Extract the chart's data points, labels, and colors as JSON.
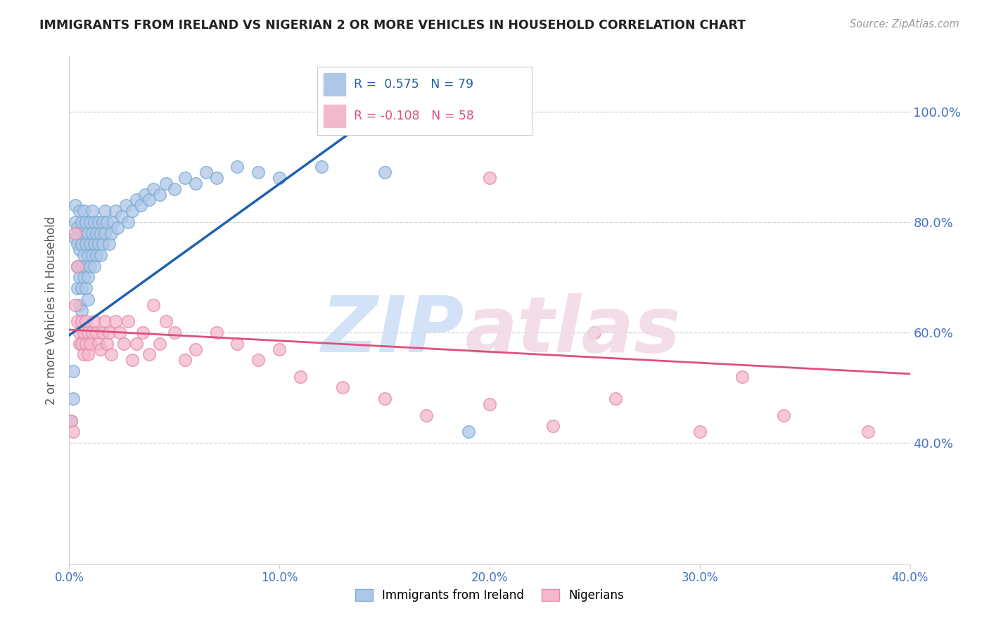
{
  "title": "IMMIGRANTS FROM IRELAND VS NIGERIAN 2 OR MORE VEHICLES IN HOUSEHOLD CORRELATION CHART",
  "source": "Source: ZipAtlas.com",
  "ylabel": "2 or more Vehicles in Household",
  "right_yticklabels": [
    "40.0%",
    "60.0%",
    "80.0%",
    "100.0%"
  ],
  "right_yticks": [
    0.4,
    0.6,
    0.8,
    1.0
  ],
  "xlim": [
    0.0,
    0.4
  ],
  "ylim": [
    0.18,
    1.1
  ],
  "xticks": [
    0.0,
    0.1,
    0.2,
    0.3,
    0.4
  ],
  "legend_ireland": "Immigrants from Ireland",
  "legend_nigerian": "Nigerians",
  "R_ireland": 0.575,
  "N_ireland": 79,
  "R_nigerian": -0.108,
  "N_nigerian": 58,
  "ireland_color": "#aec6e8",
  "ireland_edge_color": "#7aadd4",
  "ireland_line_color": "#2060b0",
  "nigerian_color": "#f4b8cc",
  "nigerian_edge_color": "#e88aaa",
  "nigerian_line_color": "#e0507a",
  "watermark_zip_color": "#ccddf5",
  "watermark_atlas_color": "#f0d8e4",
  "grid_color": "#d0d0d0",
  "background_color": "#ffffff",
  "title_color": "#222222",
  "right_label_color": "#4472c4",
  "bottom_label_color": "#4472c4",
  "ireland_x": [
    0.001,
    0.002,
    0.002,
    0.003,
    0.003,
    0.003,
    0.004,
    0.004,
    0.004,
    0.004,
    0.005,
    0.005,
    0.005,
    0.005,
    0.005,
    0.006,
    0.006,
    0.006,
    0.006,
    0.006,
    0.007,
    0.007,
    0.007,
    0.007,
    0.008,
    0.008,
    0.008,
    0.008,
    0.009,
    0.009,
    0.009,
    0.009,
    0.01,
    0.01,
    0.01,
    0.011,
    0.011,
    0.011,
    0.012,
    0.012,
    0.012,
    0.013,
    0.013,
    0.014,
    0.014,
    0.015,
    0.015,
    0.016,
    0.016,
    0.017,
    0.017,
    0.018,
    0.019,
    0.02,
    0.021,
    0.022,
    0.023,
    0.025,
    0.027,
    0.028,
    0.03,
    0.032,
    0.034,
    0.036,
    0.038,
    0.04,
    0.043,
    0.046,
    0.05,
    0.055,
    0.06,
    0.065,
    0.07,
    0.08,
    0.09,
    0.1,
    0.12,
    0.15,
    0.19
  ],
  "ireland_y": [
    0.44,
    0.53,
    0.48,
    0.8,
    0.77,
    0.83,
    0.76,
    0.79,
    0.72,
    0.68,
    0.78,
    0.82,
    0.75,
    0.7,
    0.65,
    0.8,
    0.76,
    0.72,
    0.68,
    0.64,
    0.82,
    0.78,
    0.74,
    0.7,
    0.8,
    0.76,
    0.72,
    0.68,
    0.78,
    0.74,
    0.7,
    0.66,
    0.8,
    0.76,
    0.72,
    0.82,
    0.78,
    0.74,
    0.8,
    0.76,
    0.72,
    0.78,
    0.74,
    0.8,
    0.76,
    0.78,
    0.74,
    0.8,
    0.76,
    0.82,
    0.78,
    0.8,
    0.76,
    0.78,
    0.8,
    0.82,
    0.79,
    0.81,
    0.83,
    0.8,
    0.82,
    0.84,
    0.83,
    0.85,
    0.84,
    0.86,
    0.85,
    0.87,
    0.86,
    0.88,
    0.87,
    0.89,
    0.88,
    0.9,
    0.89,
    0.88,
    0.9,
    0.89,
    0.42
  ],
  "nigerian_x": [
    0.001,
    0.002,
    0.003,
    0.003,
    0.004,
    0.004,
    0.005,
    0.005,
    0.006,
    0.006,
    0.007,
    0.007,
    0.008,
    0.008,
    0.009,
    0.009,
    0.01,
    0.011,
    0.012,
    0.013,
    0.014,
    0.015,
    0.016,
    0.017,
    0.018,
    0.019,
    0.02,
    0.022,
    0.024,
    0.026,
    0.028,
    0.03,
    0.032,
    0.035,
    0.038,
    0.04,
    0.043,
    0.046,
    0.05,
    0.055,
    0.06,
    0.07,
    0.08,
    0.09,
    0.1,
    0.11,
    0.13,
    0.15,
    0.17,
    0.2,
    0.23,
    0.26,
    0.3,
    0.34,
    0.38,
    0.2,
    0.25,
    0.32
  ],
  "nigerian_y": [
    0.44,
    0.42,
    0.78,
    0.65,
    0.72,
    0.62,
    0.6,
    0.58,
    0.62,
    0.58,
    0.6,
    0.56,
    0.62,
    0.58,
    0.6,
    0.56,
    0.58,
    0.6,
    0.62,
    0.6,
    0.58,
    0.57,
    0.6,
    0.62,
    0.58,
    0.6,
    0.56,
    0.62,
    0.6,
    0.58,
    0.62,
    0.55,
    0.58,
    0.6,
    0.56,
    0.65,
    0.58,
    0.62,
    0.6,
    0.55,
    0.57,
    0.6,
    0.58,
    0.55,
    0.57,
    0.52,
    0.5,
    0.48,
    0.45,
    0.47,
    0.43,
    0.48,
    0.42,
    0.45,
    0.42,
    0.88,
    0.6,
    0.52
  ],
  "ireland_line_x": [
    0.0,
    0.155
  ],
  "ireland_line_y": [
    0.595,
    1.02
  ],
  "nigerian_line_x": [
    0.0,
    0.4
  ],
  "nigerian_line_y": [
    0.605,
    0.525
  ]
}
